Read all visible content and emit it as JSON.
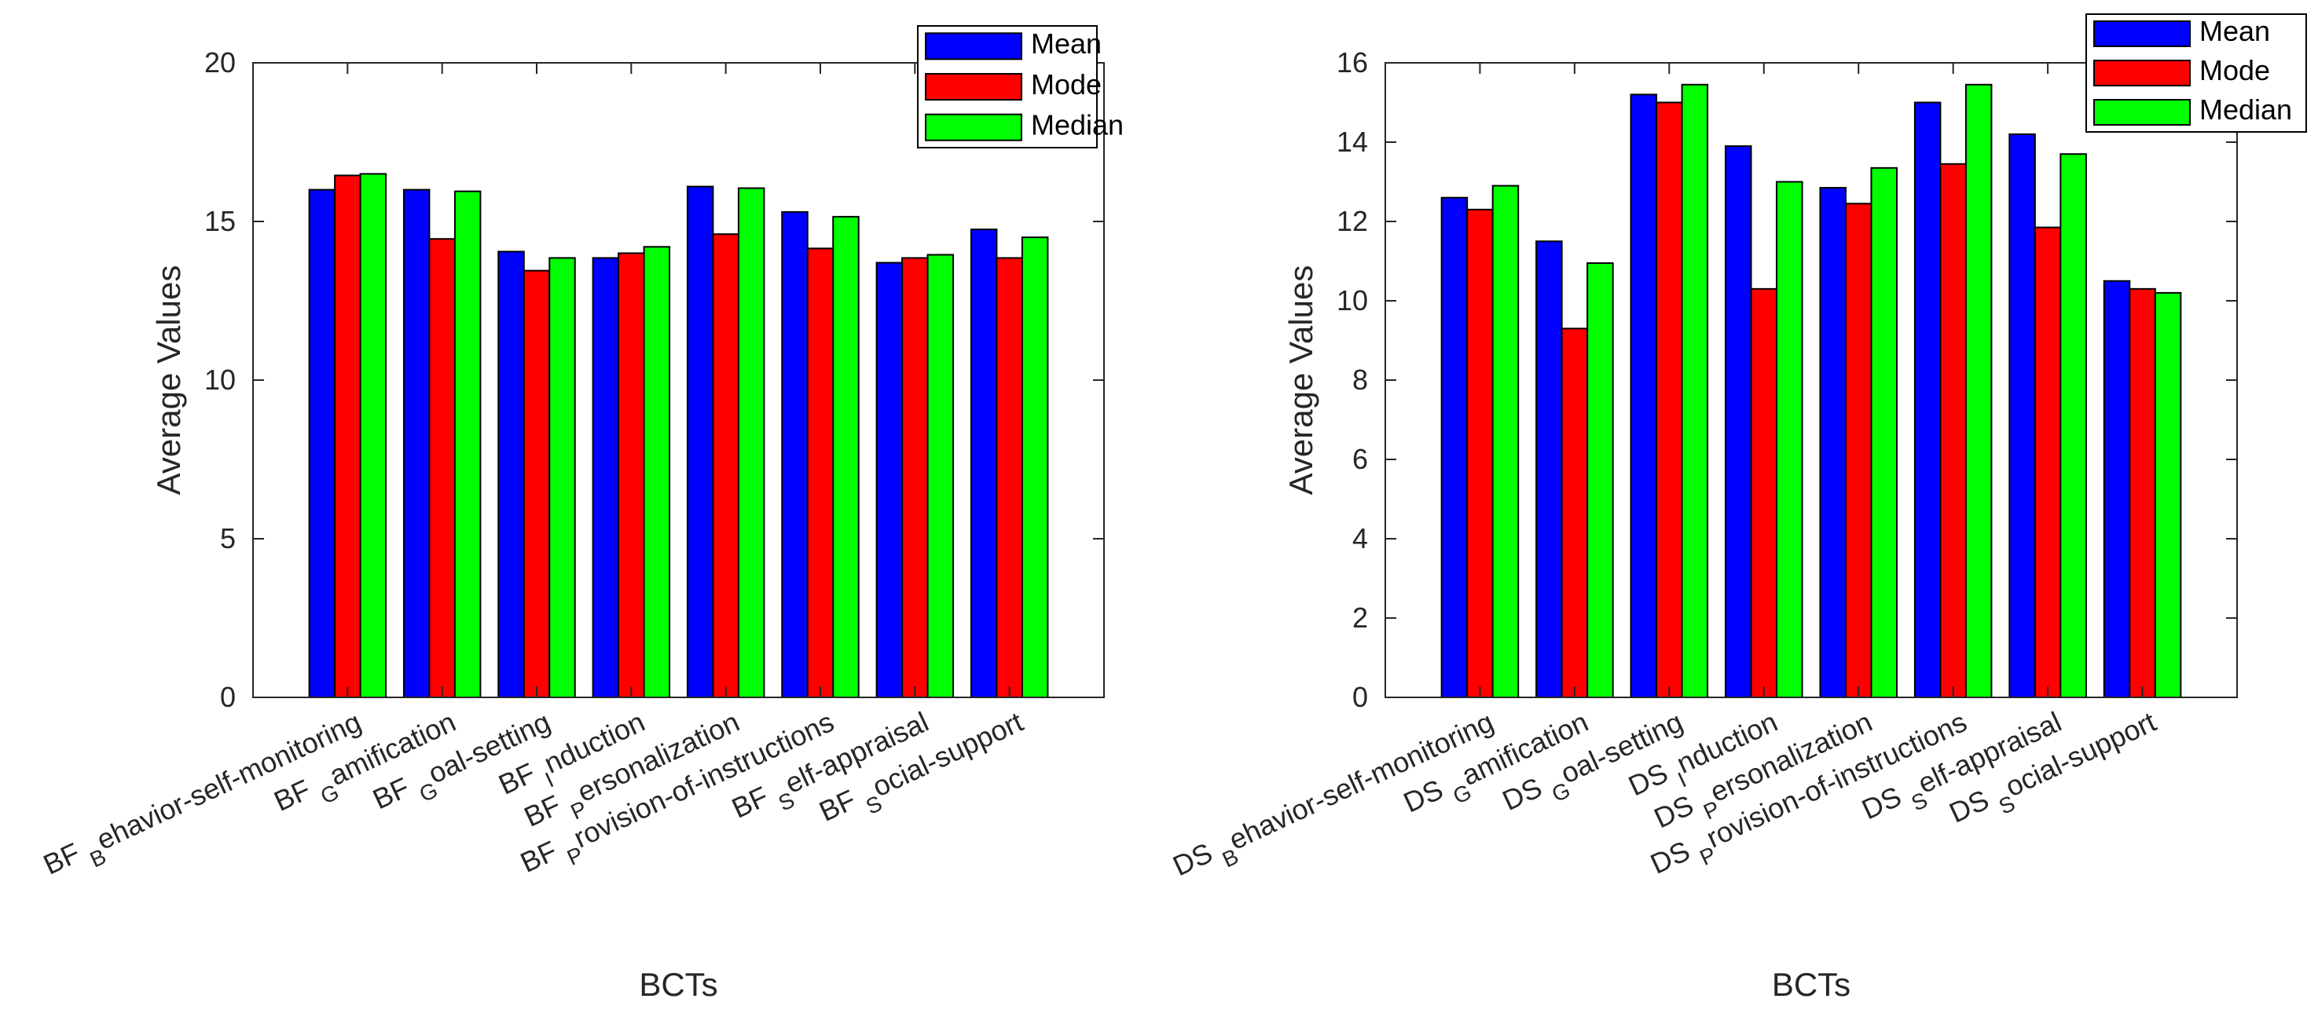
{
  "colors": {
    "mean": "#0000ff",
    "mode": "#ff0000",
    "median": "#00ff00",
    "axis": "#262626",
    "background": "#ffffff"
  },
  "legend_entries": [
    "Mean",
    "Mode",
    "Median"
  ],
  "chart_data": [
    {
      "type": "bar",
      "xlabel": "BCTs",
      "ylabel": "Average Values",
      "ylim": [
        0,
        20
      ],
      "yticks": [
        0,
        5,
        10,
        15,
        20
      ],
      "grid": false,
      "legend_position": "top-right",
      "categories": [
        {
          "main": "BF",
          "sub": "B",
          "rest": "ehavior-self-monitoring"
        },
        {
          "main": "BF",
          "sub": "G",
          "rest": "amification"
        },
        {
          "main": "BF",
          "sub": "G",
          "rest": "oal-setting"
        },
        {
          "main": "BF",
          "sub": "I",
          "rest": "nduction"
        },
        {
          "main": "BF",
          "sub": "P",
          "rest": "ersonalization"
        },
        {
          "main": "BF",
          "sub": "P",
          "rest": "rovision-of-instructions"
        },
        {
          "main": "BF",
          "sub": "S",
          "rest": "elf-appraisal"
        },
        {
          "main": "BF",
          "sub": "S",
          "rest": "ocial-support"
        }
      ],
      "series": [
        {
          "name": "Mean",
          "values": [
            16.0,
            16.0,
            14.05,
            13.85,
            16.1,
            15.3,
            13.7,
            14.75
          ]
        },
        {
          "name": "Mode",
          "values": [
            16.45,
            14.45,
            13.45,
            14.0,
            14.6,
            14.15,
            13.85,
            13.85
          ]
        },
        {
          "name": "Median",
          "values": [
            16.5,
            15.95,
            13.85,
            14.2,
            16.05,
            15.15,
            13.95,
            14.5
          ]
        }
      ]
    },
    {
      "type": "bar",
      "xlabel": "BCTs",
      "ylabel": "Average Values",
      "ylim": [
        0,
        16
      ],
      "yticks": [
        0,
        2,
        4,
        6,
        8,
        10,
        12,
        14,
        16
      ],
      "grid": false,
      "legend_position": "top-right",
      "categories": [
        {
          "main": "DS",
          "sub": "B",
          "rest": "ehavior-self-monitoring"
        },
        {
          "main": "DS",
          "sub": "G",
          "rest": "amification"
        },
        {
          "main": "DS",
          "sub": "G",
          "rest": "oal-setting"
        },
        {
          "main": "DS",
          "sub": "I",
          "rest": "nduction"
        },
        {
          "main": "DS",
          "sub": "P",
          "rest": "ersonalization"
        },
        {
          "main": "DS",
          "sub": "P",
          "rest": "rovision-of-instructions"
        },
        {
          "main": "DS",
          "sub": "S",
          "rest": "elf-appraisal"
        },
        {
          "main": "DS",
          "sub": "S",
          "rest": "ocial-support"
        }
      ],
      "series": [
        {
          "name": "Mean",
          "values": [
            12.6,
            11.5,
            15.2,
            13.9,
            12.85,
            15.0,
            14.2,
            10.5
          ]
        },
        {
          "name": "Mode",
          "values": [
            12.3,
            9.3,
            15.0,
            10.3,
            12.45,
            13.45,
            11.85,
            10.3
          ]
        },
        {
          "name": "Median",
          "values": [
            12.9,
            10.95,
            15.45,
            13.0,
            13.35,
            15.45,
            13.7,
            10.2
          ]
        }
      ]
    }
  ]
}
